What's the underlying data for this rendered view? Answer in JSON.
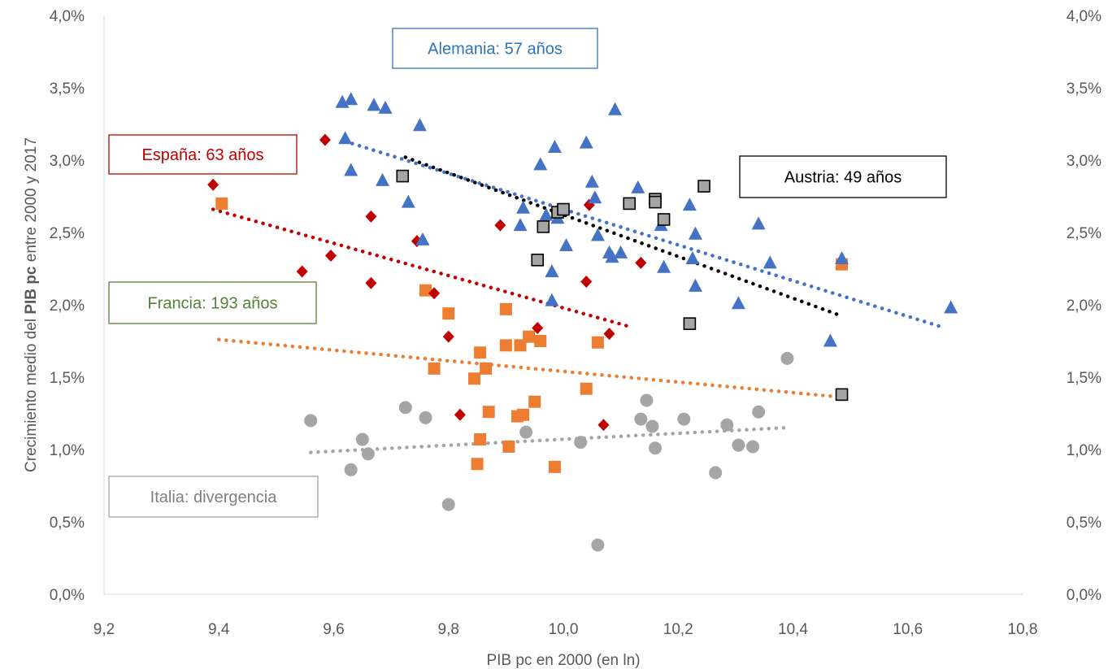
{
  "chart_data": {
    "type": "scatter",
    "title": "",
    "xlabel": "PIB pc en 2000 (en ln)",
    "ylabel": {
      "pre": "Crecimiento medio del ",
      "bold": "PIB pc",
      "post": " entre 2000 y 2017"
    },
    "xlim": [
      9.2,
      10.8
    ],
    "ylim": [
      0.0,
      0.04
    ],
    "x_ticks": [
      "9,2",
      "9,4",
      "9,6",
      "9,8",
      "10,0",
      "10,2",
      "10,4",
      "10,6",
      "10,8"
    ],
    "y_ticks": [
      "0,0%",
      "0,5%",
      "1,0%",
      "1,5%",
      "2,0%",
      "2,5%",
      "3,0%",
      "3,5%",
      "4,0%"
    ],
    "y_ticks_right": [
      "0,0%",
      "0,5%",
      "1,0%",
      "1,5%",
      "2,0%",
      "2,5%",
      "3,0%",
      "3,5%",
      "4,0%"
    ],
    "grid": false,
    "legend": "none",
    "series": [
      {
        "key": "alemania",
        "marker": "triangle",
        "color": "#4472C4",
        "points": [
          [
            9.615,
            0.034
          ],
          [
            9.63,
            0.0342
          ],
          [
            9.67,
            0.0338
          ],
          [
            9.69,
            0.0336
          ],
          [
            9.62,
            0.0315
          ],
          [
            9.75,
            0.0324
          ],
          [
            9.63,
            0.0293
          ],
          [
            9.685,
            0.0286
          ],
          [
            9.73,
            0.0271
          ],
          [
            9.755,
            0.0245
          ],
          [
            9.93,
            0.0267
          ],
          [
            9.925,
            0.0255
          ],
          [
            9.96,
            0.0297
          ],
          [
            9.97,
            0.0262
          ],
          [
            9.985,
            0.0309
          ],
          [
            9.98,
            0.0223
          ],
          [
            9.98,
            0.0203
          ],
          [
            9.99,
            0.026
          ],
          [
            10.005,
            0.0241
          ],
          [
            10.04,
            0.0312
          ],
          [
            10.05,
            0.0285
          ],
          [
            10.055,
            0.0274
          ],
          [
            10.06,
            0.0248
          ],
          [
            10.08,
            0.0236
          ],
          [
            10.085,
            0.0233
          ],
          [
            10.09,
            0.0335
          ],
          [
            10.1,
            0.0236
          ],
          [
            10.13,
            0.0281
          ],
          [
            10.17,
            0.0255
          ],
          [
            10.175,
            0.0226
          ],
          [
            10.22,
            0.0269
          ],
          [
            10.225,
            0.0232
          ],
          [
            10.23,
            0.0249
          ],
          [
            10.23,
            0.0213
          ],
          [
            10.305,
            0.0201
          ],
          [
            10.34,
            0.0256
          ],
          [
            10.36,
            0.0229
          ],
          [
            10.465,
            0.0175
          ],
          [
            10.485,
            0.0232
          ],
          [
            10.675,
            0.0198
          ]
        ],
        "trend": [
          [
            9.62,
            0.0313
          ],
          [
            10.665,
            0.0184
          ]
        ]
      },
      {
        "key": "espana",
        "marker": "diamond",
        "color": "#C00000",
        "points": [
          [
            9.39,
            0.0283
          ],
          [
            9.545,
            0.0223
          ],
          [
            9.585,
            0.0314
          ],
          [
            9.595,
            0.0234
          ],
          [
            9.665,
            0.0261
          ],
          [
            9.665,
            0.0215
          ],
          [
            9.745,
            0.0244
          ],
          [
            9.775,
            0.0208
          ],
          [
            9.8,
            0.0178
          ],
          [
            9.82,
            0.0124
          ],
          [
            9.89,
            0.0255
          ],
          [
            9.955,
            0.0184
          ],
          [
            10.04,
            0.0216
          ],
          [
            10.045,
            0.0269
          ],
          [
            10.07,
            0.0117
          ],
          [
            10.08,
            0.018
          ],
          [
            10.135,
            0.0229
          ]
        ],
        "trend": [
          [
            9.39,
            0.0266
          ],
          [
            10.115,
            0.0185
          ]
        ]
      },
      {
        "key": "francia",
        "marker": "square",
        "color": "#ED7D31",
        "points": [
          [
            9.405,
            0.027
          ],
          [
            9.76,
            0.021
          ],
          [
            9.775,
            0.0156
          ],
          [
            9.8,
            0.0194
          ],
          [
            9.845,
            0.0149
          ],
          [
            9.855,
            0.0167
          ],
          [
            9.855,
            0.0107
          ],
          [
            9.85,
            0.009
          ],
          [
            9.865,
            0.0156
          ],
          [
            9.87,
            0.0126
          ],
          [
            9.9,
            0.0197
          ],
          [
            9.9,
            0.0172
          ],
          [
            9.905,
            0.0102
          ],
          [
            9.92,
            0.0123
          ],
          [
            9.925,
            0.0172
          ],
          [
            9.93,
            0.0124
          ],
          [
            9.94,
            0.0178
          ],
          [
            9.95,
            0.0133
          ],
          [
            9.96,
            0.0175
          ],
          [
            9.985,
            0.0088
          ],
          [
            10.04,
            0.0142
          ],
          [
            10.06,
            0.0174
          ],
          [
            10.485,
            0.0228
          ]
        ],
        "trend": [
          [
            9.4,
            0.0176
          ],
          [
            10.49,
            0.0136
          ]
        ]
      },
      {
        "key": "italia",
        "marker": "circle",
        "color": "#A5A5A5",
        "points": [
          [
            9.56,
            0.012
          ],
          [
            9.63,
            0.0086
          ],
          [
            9.65,
            0.0107
          ],
          [
            9.66,
            0.0097
          ],
          [
            9.725,
            0.0129
          ],
          [
            9.76,
            0.0122
          ],
          [
            9.8,
            0.0062
          ],
          [
            9.935,
            0.0112
          ],
          [
            10.03,
            0.0105
          ],
          [
            10.06,
            0.0034
          ],
          [
            10.135,
            0.0121
          ],
          [
            10.145,
            0.0134
          ],
          [
            10.155,
            0.0116
          ],
          [
            10.16,
            0.0101
          ],
          [
            10.21,
            0.0121
          ],
          [
            10.265,
            0.0084
          ],
          [
            10.285,
            0.0117
          ],
          [
            10.305,
            0.0103
          ],
          [
            10.33,
            0.0102
          ],
          [
            10.34,
            0.0126
          ],
          [
            10.39,
            0.0163
          ]
        ],
        "trend": [
          [
            9.56,
            0.0098
          ],
          [
            10.385,
            0.0115
          ]
        ]
      },
      {
        "key": "austria",
        "marker": "square-outline",
        "color": "#A5A5A5",
        "stroke": "#000000",
        "points": [
          [
            9.72,
            0.0289
          ],
          [
            9.955,
            0.0231
          ],
          [
            9.965,
            0.0254
          ],
          [
            9.99,
            0.0264
          ],
          [
            10.0,
            0.0266
          ],
          [
            10.115,
            0.027
          ],
          [
            10.16,
            0.0273
          ],
          [
            10.16,
            0.0271
          ],
          [
            10.175,
            0.0259
          ],
          [
            10.22,
            0.0187
          ],
          [
            10.245,
            0.0282
          ],
          [
            10.485,
            0.0138
          ]
        ],
        "trend": [
          [
            9.725,
            0.0302
          ],
          [
            10.48,
            0.0193
          ]
        ]
      }
    ],
    "annotations": [
      {
        "key": "alemania",
        "text": "Alemania: 57 años",
        "color": "#2E75B6",
        "border": "#2E75B6"
      },
      {
        "key": "espana",
        "text": "España: 63 años",
        "color": "#C00000",
        "border": "#C00000"
      },
      {
        "key": "austria",
        "text": "Austria: 49 años",
        "color": "#000000",
        "border": "#000000"
      },
      {
        "key": "francia",
        "text": "Francia: 193 años",
        "color": "#548235",
        "border": "#548235"
      },
      {
        "key": "italia",
        "text": "Italia: divergencia",
        "color": "#7F7F7F",
        "border": "#A5A5A5"
      }
    ],
    "trend_colors": {
      "alemania": "#4472C4",
      "espana": "#C00000",
      "francia": "#ED7D31",
      "italia": "#A5A5A5",
      "austria": "#000000"
    }
  }
}
